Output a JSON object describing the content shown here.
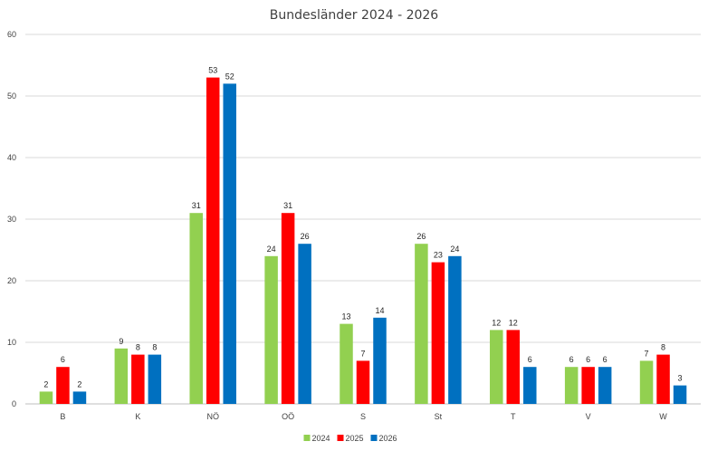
{
  "chart_data": {
    "type": "bar",
    "title": "Bundesländer 2024 - 2026",
    "xlabel": "",
    "ylabel": "",
    "categories": [
      "B",
      "K",
      "NÖ",
      "OÖ",
      "S",
      "St",
      "T",
      "V",
      "W"
    ],
    "series": [
      {
        "name": "2024",
        "color": "#92d050",
        "values": [
          2,
          9,
          31,
          24,
          13,
          26,
          12,
          6,
          7
        ]
      },
      {
        "name": "2025",
        "color": "#ff0000",
        "values": [
          6,
          8,
          53,
          31,
          7,
          23,
          12,
          6,
          8
        ]
      },
      {
        "name": "2026",
        "color": "#0070c0",
        "values": [
          2,
          8,
          52,
          26,
          14,
          24,
          6,
          6,
          3
        ]
      }
    ],
    "ylim": [
      0,
      60
    ],
    "yticks": [
      0,
      10,
      20,
      30,
      40,
      50,
      60
    ],
    "grid": true,
    "legend_position": "bottom",
    "data_labels": true
  }
}
